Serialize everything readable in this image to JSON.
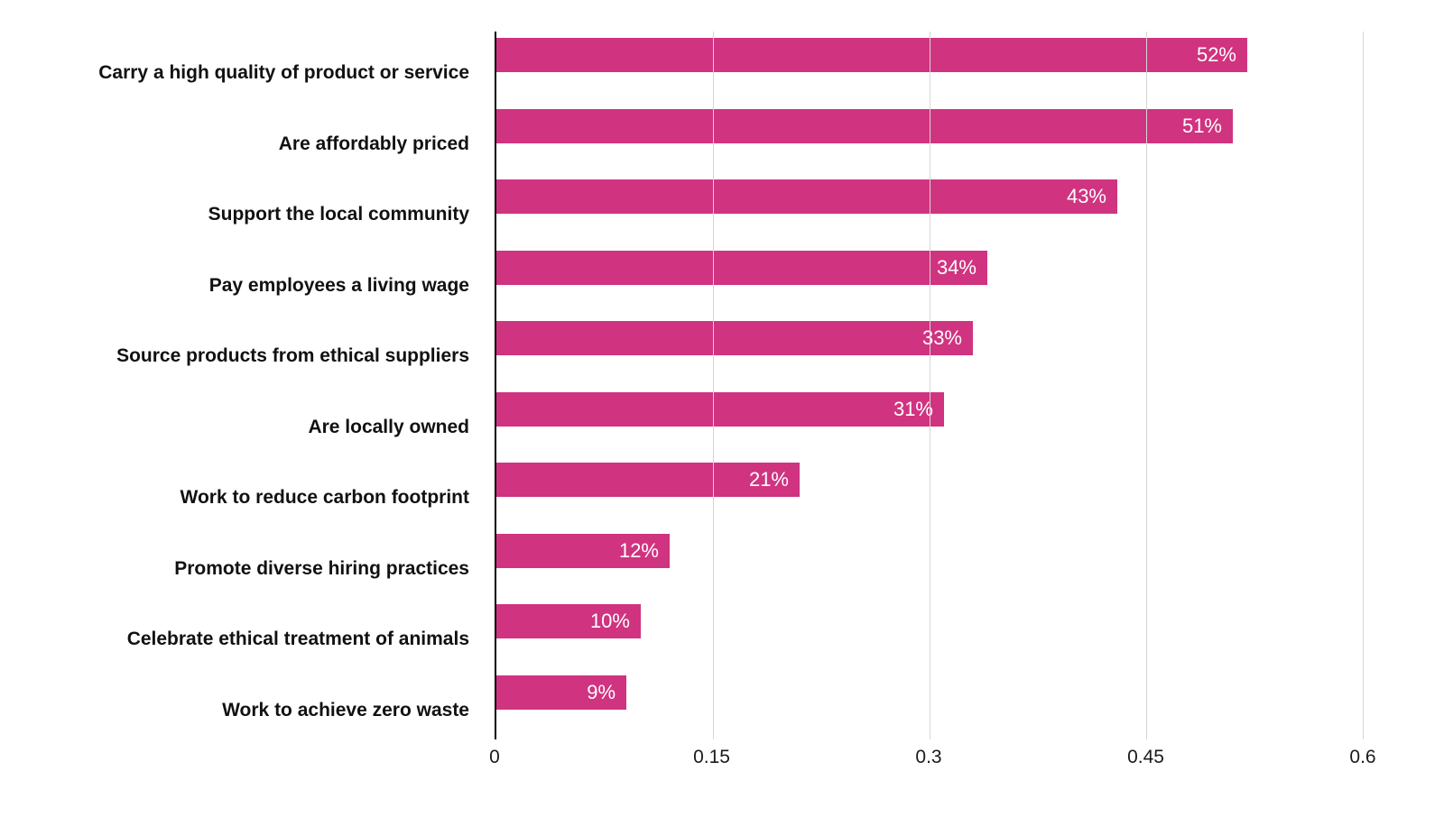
{
  "chart_data": {
    "type": "bar",
    "orientation": "horizontal",
    "title": "",
    "xlabel": "",
    "ylabel": "",
    "categories": [
      "Carry a high quality of product or service",
      "Are affordably priced",
      "Support the local community",
      "Pay employees a living wage",
      "Source products from ethical suppliers",
      "Are locally owned",
      "Work to reduce carbon footprint",
      "Promote diverse hiring practices",
      "Celebrate ethical treatment of animals",
      "Work to achieve zero waste"
    ],
    "values": [
      0.52,
      0.51,
      0.43,
      0.34,
      0.33,
      0.31,
      0.21,
      0.12,
      0.1,
      0.09
    ],
    "value_labels": [
      "52%",
      "51%",
      "43%",
      "34%",
      "33%",
      "31%",
      "21%",
      "12%",
      "10%",
      "9%"
    ],
    "xlim": [
      0,
      0.6
    ],
    "x_ticks": [
      0,
      0.15,
      0.3,
      0.45,
      0.6
    ],
    "x_tick_labels": [
      "0",
      "0.15",
      "0.3",
      "0.45",
      "0.6"
    ],
    "grid": "vertical",
    "legend": "none",
    "bar_color": "#d03380",
    "value_label_color": "#ffffff",
    "axis_line_color": "#000000",
    "gridline_color": "#d6d6d6"
  }
}
